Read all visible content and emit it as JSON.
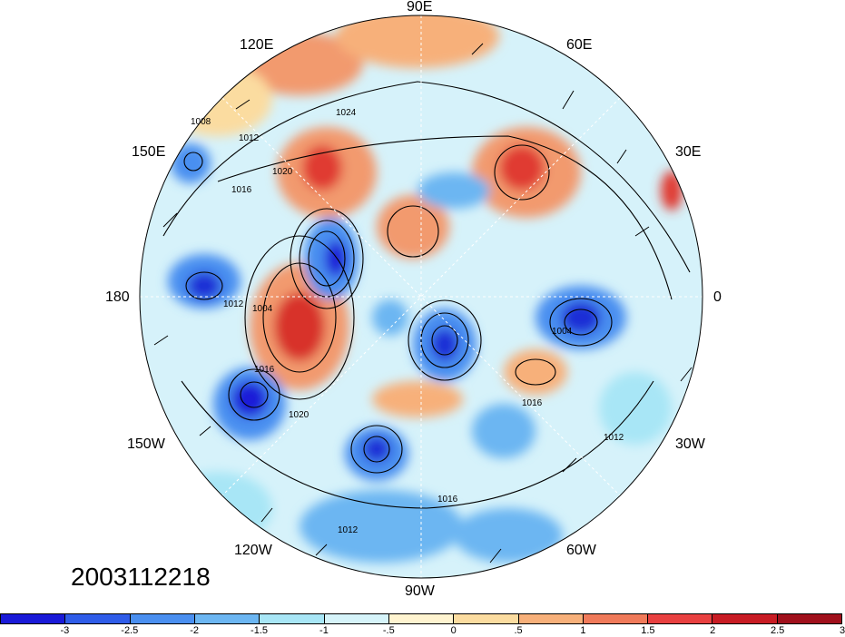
{
  "map": {
    "lon_labels": {
      "e90": "90E",
      "e120": "120E",
      "e60": "60E",
      "e150": "150E",
      "e30": "30E",
      "w180": "180",
      "e0": "0",
      "w150": "150W",
      "w30": "30W",
      "w120": "120W",
      "w60": "60W",
      "w90": "90W"
    },
    "isobar_labels": [
      "1008",
      "1012",
      "1016",
      "1020",
      "1024",
      "1004",
      "1016",
      "1012",
      "1016",
      "1012",
      "1016",
      "1020",
      "1012",
      "1004"
    ],
    "timestamp": "2003112218"
  },
  "colorbar": {
    "colors": [
      "#1a1ad8",
      "#2f5ce8",
      "#4a8ff0",
      "#6cb6f2",
      "#a8e6f6",
      "#d6f4fa",
      "#fff4d0",
      "#fbdca0",
      "#f7b07a",
      "#f07a5a",
      "#e84040",
      "#c81c24",
      "#a0101c"
    ],
    "ticks": [
      "-3",
      "-2.5",
      "-2",
      "-1.5",
      "-1",
      "-.5",
      "0",
      ".5",
      "1",
      "1.5",
      "2",
      "2.5",
      "3"
    ]
  },
  "colors": {
    "strong_neg": "#1e2fd6",
    "neg": "#4d8ee8",
    "weak_neg": "#a8e2f4",
    "neutral": "#e8f6fb",
    "weak_pos": "#fde6b0",
    "pos": "#f29a6e",
    "strong_pos": "#d8362e"
  }
}
